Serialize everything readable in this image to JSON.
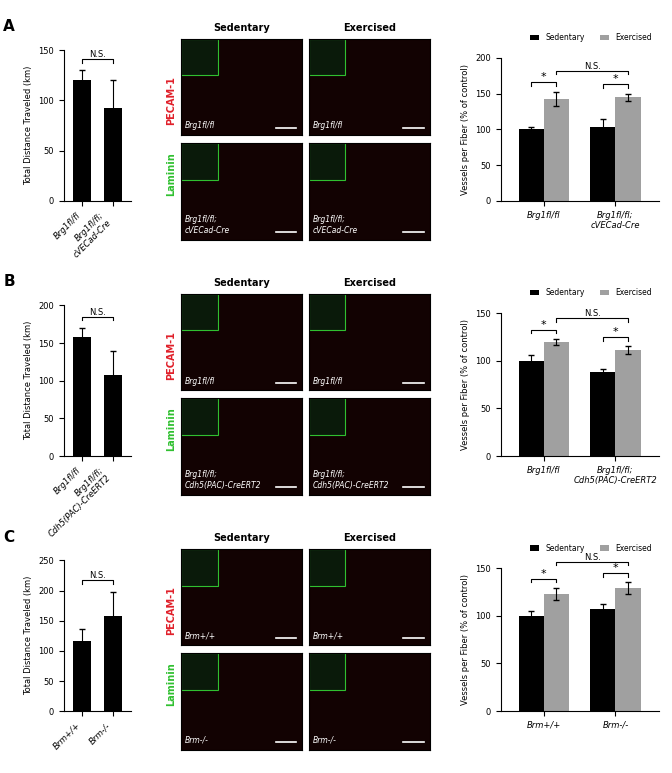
{
  "chart_data": [
    {
      "type": "bar",
      "ylabel": "Total Distance Traveled (km)",
      "categories": [
        "Brg1fl/fl",
        "Brg1fl/fl;\ncVECad-Cre"
      ],
      "values": [
        120,
        93
      ],
      "errors": [
        10,
        27
      ],
      "color": "#000000",
      "ylim": [
        0,
        150
      ],
      "yticks": [
        0,
        50,
        100,
        150
      ],
      "annotations": [
        {
          "text": "N.S.",
          "bars": [
            0,
            1
          ]
        }
      ]
    },
    {
      "type": "grouped_bar",
      "ylabel": "Vessels per Fiber (% of control)",
      "categories": [
        "Brg1fl/fl",
        "Brg1fl/fl;\ncVECad-Cre"
      ],
      "series": [
        {
          "name": "Sedentary",
          "color": "#000000",
          "values": [
            100,
            103
          ],
          "errors": [
            4,
            11
          ]
        },
        {
          "name": "Exercised",
          "color": "#a0a0a0",
          "values": [
            143,
            145
          ],
          "errors": [
            10,
            5
          ]
        }
      ],
      "ylim": [
        0,
        200
      ],
      "yticks": [
        0,
        50,
        100,
        150,
        200
      ],
      "legend": "upper right",
      "annotations": [
        {
          "text": "*",
          "bars": [
            [
              0,
              0
            ],
            [
              1,
              0
            ]
          ]
        },
        {
          "text": "*",
          "bars": [
            [
              0,
              1
            ],
            [
              1,
              1
            ]
          ]
        },
        {
          "text": "N.S.",
          "bars": [
            [
              1,
              0
            ],
            [
              1,
              1
            ]
          ]
        }
      ]
    },
    {
      "type": "bar",
      "ylabel": "Total Distance Traveled (km)",
      "categories": [
        "Brg1fl/fl",
        "Brg1fl/fl;\nCdh5(PAC)-CreERT2"
      ],
      "values": [
        158,
        107
      ],
      "errors": [
        12,
        33
      ],
      "color": "#000000",
      "ylim": [
        0,
        200
      ],
      "yticks": [
        0,
        50,
        100,
        150,
        200
      ],
      "annotations": [
        {
          "text": "N.S.",
          "bars": [
            0,
            1
          ]
        }
      ]
    },
    {
      "type": "grouped_bar",
      "ylabel": "Vessels per Fiber (% of control)",
      "categories": [
        "Brg1fl/fl",
        "Brg1fl/fl;\nCdh5(PAC)-CreERT2"
      ],
      "series": [
        {
          "name": "Sedentary",
          "color": "#000000",
          "values": [
            100,
            88
          ],
          "errors": [
            6,
            3
          ]
        },
        {
          "name": "Exercised",
          "color": "#a0a0a0",
          "values": [
            120,
            111
          ],
          "errors": [
            3,
            4
          ]
        }
      ],
      "ylim": [
        0,
        150
      ],
      "yticks": [
        0,
        50,
        100,
        150
      ],
      "legend": "upper right",
      "annotations": [
        {
          "text": "*",
          "bars": [
            [
              0,
              0
            ],
            [
              1,
              0
            ]
          ]
        },
        {
          "text": "*",
          "bars": [
            [
              0,
              1
            ],
            [
              1,
              1
            ]
          ]
        },
        {
          "text": "N.S.",
          "bars": [
            [
              1,
              0
            ],
            [
              1,
              1
            ]
          ]
        }
      ]
    },
    {
      "type": "bar",
      "ylabel": "Total Distance Traveled (km)",
      "categories": [
        "Brm+/+",
        "Brm-/-"
      ],
      "values": [
        117,
        158
      ],
      "errors": [
        20,
        40
      ],
      "color": "#000000",
      "ylim": [
        0,
        250
      ],
      "yticks": [
        0,
        50,
        100,
        150,
        200,
        250
      ],
      "annotations": [
        {
          "text": "N.S.",
          "bars": [
            0,
            1
          ]
        }
      ]
    },
    {
      "type": "grouped_bar",
      "ylabel": "Vessels per Fiber (% of control)",
      "categories": [
        "Brm+/+",
        "Brm-/-"
      ],
      "series": [
        {
          "name": "Sedentary",
          "color": "#000000",
          "values": [
            100,
            107
          ],
          "errors": [
            5,
            5
          ]
        },
        {
          "name": "Exercised",
          "color": "#a0a0a0",
          "values": [
            123,
            129
          ],
          "errors": [
            6,
            6
          ]
        }
      ],
      "ylim": [
        0,
        150
      ],
      "yticks": [
        0,
        50,
        100,
        150
      ],
      "legend": "upper right",
      "annotations": [
        {
          "text": "*",
          "bars": [
            [
              0,
              0
            ],
            [
              1,
              0
            ]
          ]
        },
        {
          "text": "*",
          "bars": [
            [
              0,
              1
            ],
            [
              1,
              1
            ]
          ]
        },
        {
          "text": "N.S.",
          "bars": [
            [
              1,
              0
            ],
            [
              1,
              1
            ]
          ]
        }
      ]
    }
  ],
  "figure": {
    "panel_letters": [
      "A",
      "B",
      "C"
    ],
    "micrographs": [
      {
        "stains": [
          "PECAM-1",
          "Laminin"
        ],
        "stain_colors": [
          "#e0202a",
          "#30c030"
        ],
        "columns": [
          "Sedentary",
          "Exercised"
        ],
        "genotypes": [
          "Brg1fl/fl",
          "Brg1fl/fl;\ncVECad-Cre"
        ]
      },
      {
        "stains": [
          "PECAM-1",
          "Laminin"
        ],
        "stain_colors": [
          "#e0202a",
          "#30c030"
        ],
        "columns": [
          "Sedentary",
          "Exercised"
        ],
        "genotypes": [
          "Brg1fl/fl",
          "Brg1fl/fl;\nCdh5(PAC)-CreERT2"
        ]
      },
      {
        "stains": [
          "PECAM-1",
          "Laminin"
        ],
        "stain_colors": [
          "#e0202a",
          "#30c030"
        ],
        "columns": [
          "Sedentary",
          "Exercised"
        ],
        "genotypes": [
          "Brm+/+",
          "Brm-/-"
        ]
      }
    ]
  }
}
